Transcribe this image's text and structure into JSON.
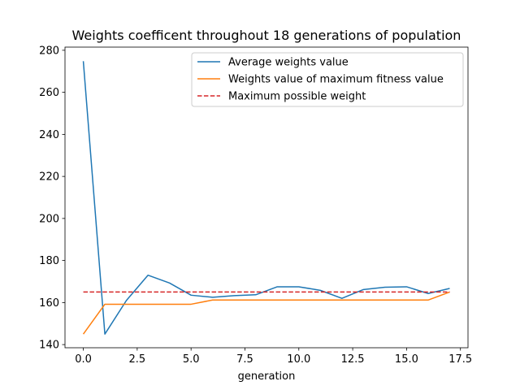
{
  "chart_data": {
    "type": "line",
    "title": "Weights coefficent throughout 18 generations of population",
    "xlabel": "generation",
    "ylabel": "",
    "xlim": [
      -0.85,
      17.85
    ],
    "ylim": [
      138.5,
      281.5
    ],
    "xticks": [
      0.0,
      2.5,
      5.0,
      7.5,
      10.0,
      12.5,
      15.0,
      17.5
    ],
    "xtick_labels": [
      "0.0",
      "2.5",
      "5.0",
      "7.5",
      "10.0",
      "12.5",
      "15.0",
      "17.5"
    ],
    "yticks": [
      140,
      160,
      180,
      200,
      220,
      240,
      260,
      280
    ],
    "ytick_labels": [
      "140",
      "160",
      "180",
      "200",
      "220",
      "240",
      "260",
      "280"
    ],
    "grid": false,
    "legend_position": "upper right",
    "x": [
      0,
      1,
      2,
      3,
      4,
      5,
      6,
      7,
      8,
      9,
      10,
      11,
      12,
      13,
      14,
      15,
      16,
      17
    ],
    "series": [
      {
        "name": "Average weights value",
        "color": "#1f77b4",
        "style": "solid",
        "values": [
          274.8,
          145.0,
          161.0,
          173.0,
          169.3,
          163.5,
          162.5,
          163.3,
          163.7,
          167.5,
          167.5,
          165.8,
          162.0,
          166.2,
          167.3,
          167.5,
          164.3,
          166.7
        ]
      },
      {
        "name": "Weights value of maximum fitness value",
        "color": "#ff7f0e",
        "style": "solid",
        "values": [
          145.0,
          159.2,
          159.2,
          159.2,
          159.2,
          159.2,
          161.2,
          161.2,
          161.2,
          161.2,
          161.2,
          161.2,
          161.2,
          161.2,
          161.2,
          161.2,
          161.2,
          165.0
        ]
      },
      {
        "name": "Maximum possible weight",
        "color": "#d62728",
        "style": "dashed",
        "values": [
          165,
          165,
          165,
          165,
          165,
          165,
          165,
          165,
          165,
          165,
          165,
          165,
          165,
          165,
          165,
          165,
          165,
          165
        ]
      }
    ]
  }
}
